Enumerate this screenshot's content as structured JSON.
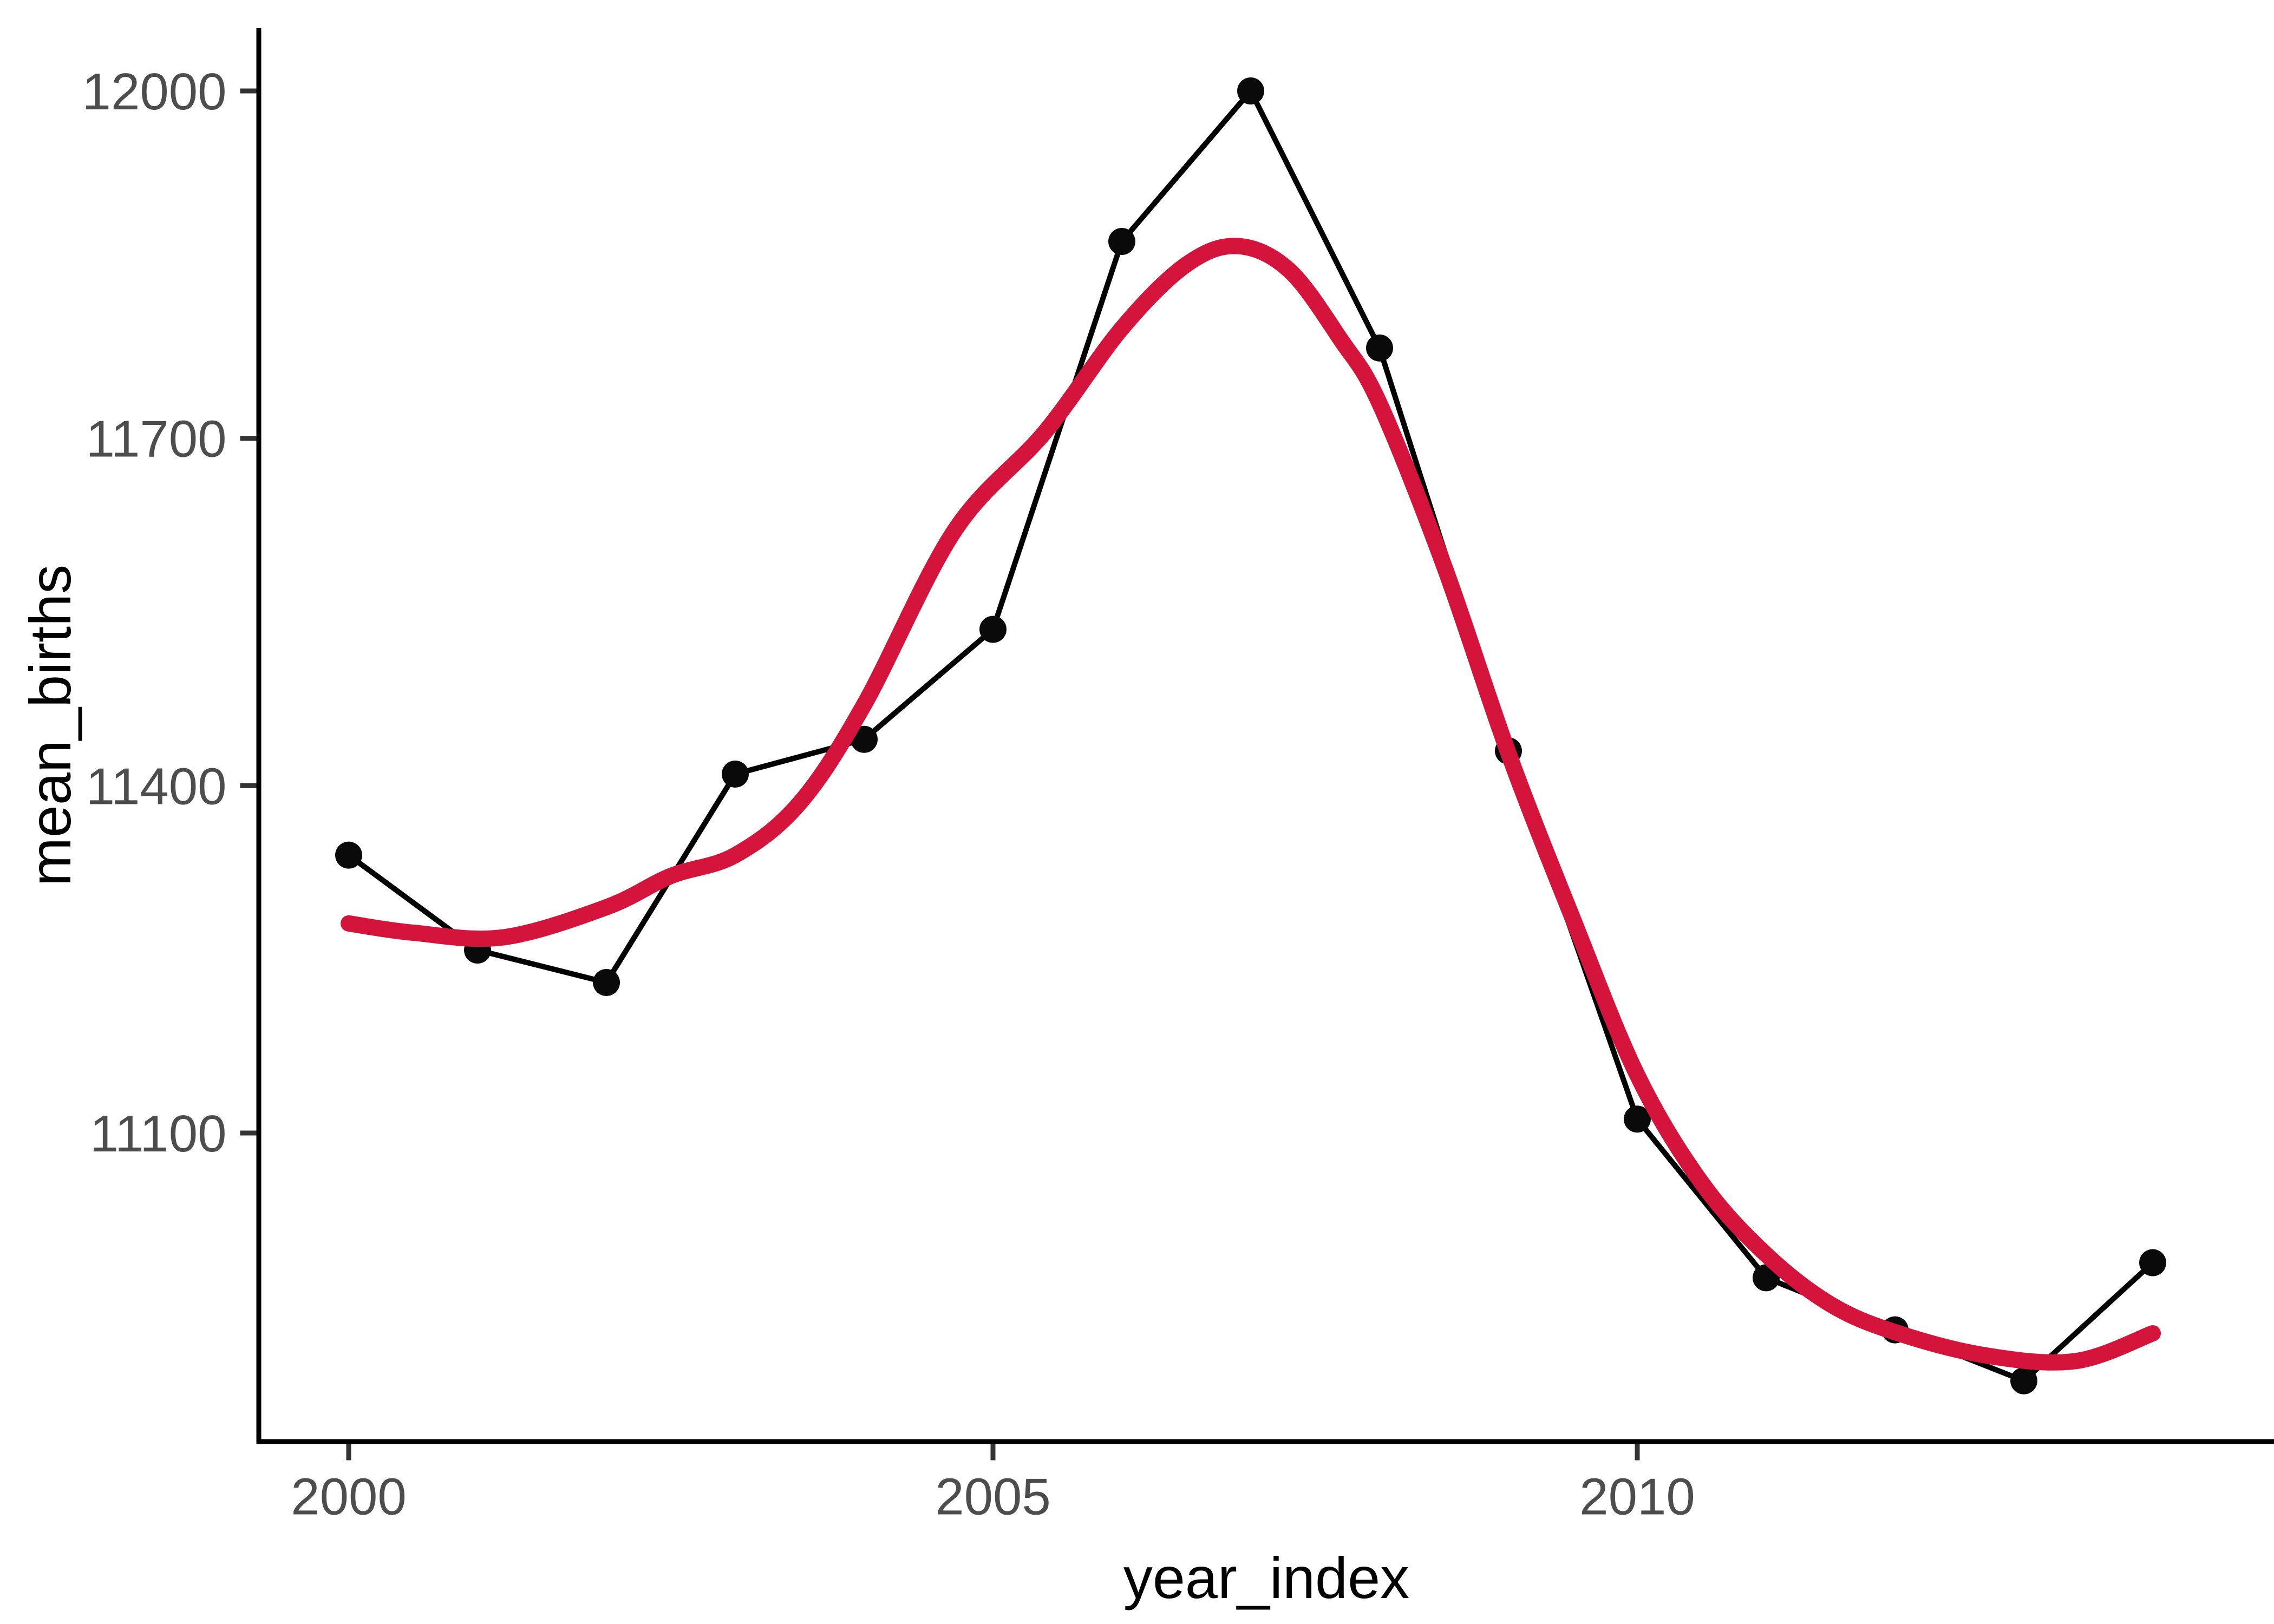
{
  "figure": {
    "background_color": "#ffffff"
  },
  "chart_data": {
    "type": "line",
    "title": "",
    "xlabel": "year_index",
    "ylabel": "mean_births",
    "grid": false,
    "legend": "none",
    "x_ticks": [
      2000,
      2005,
      2010
    ],
    "y_ticks": [
      12000,
      11700,
      11400,
      11100
    ],
    "x_range": [
      1999.3,
      2014.95
    ],
    "y_range": [
      10790,
      12055
    ],
    "colors": {
      "observed_line": "#000000",
      "observed_point": "#0a0a0a",
      "smooth_curve": "#d5143c",
      "axis_line": "#000000",
      "tick_mark": "#333333",
      "tick_text": "#4d4d4d",
      "title_text": "#000000"
    },
    "series": [
      {
        "name": "observed",
        "style": "line+points",
        "x": [
          2000,
          2001,
          2002,
          2003,
          2004,
          2005,
          2006,
          2007,
          2008,
          2009,
          2010,
          2011,
          2012,
          2013,
          2014
        ],
        "values": [
          11340,
          11258,
          11230,
          11410,
          11440,
          11535,
          11870,
          12000,
          11778,
          11430,
          11112,
          10975,
          10930,
          10886,
          10988
        ]
      },
      {
        "name": "smooth",
        "style": "line",
        "x": [
          2000,
          2000.5,
          2001.2,
          2002,
          2002.5,
          2003,
          2003.5,
          2004,
          2004.7,
          2005.4,
          2006,
          2006.5,
          2006.9,
          2007.3,
          2007.7,
          2008,
          2008.5,
          2009,
          2009.5,
          2010,
          2010.5,
          2011,
          2011.5,
          2012,
          2012.7,
          2013.4,
          2014
        ],
        "values": [
          11281,
          11273,
          11269,
          11295,
          11322,
          11340,
          11385,
          11470,
          11620,
          11705,
          11795,
          11850,
          11866,
          11845,
          11785,
          11730,
          11590,
          11428,
          11285,
          11150,
          11057,
          10995,
          10952,
          10928,
          10908,
          10903,
          10927
        ]
      }
    ]
  }
}
